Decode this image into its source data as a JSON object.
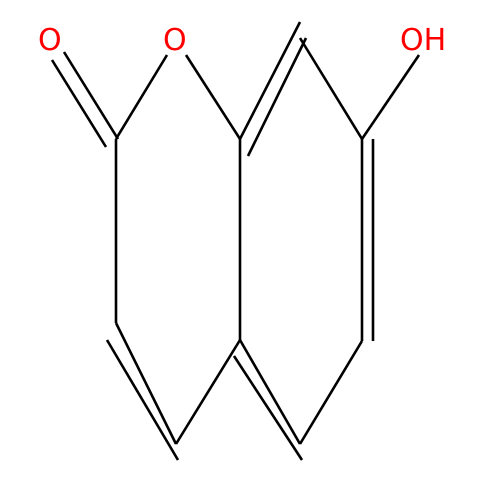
{
  "molecule": {
    "atoms": [
      {
        "symbol": "O",
        "color": "#ff0000"
      },
      {
        "symbol": "O",
        "color": "#ff0000"
      },
      {
        "symbol": "OH",
        "color": "#ff0000"
      }
    ]
  },
  "colors": {
    "bond": "#000000",
    "heteroatom": "#ff0000",
    "background": "#ffffff"
  }
}
